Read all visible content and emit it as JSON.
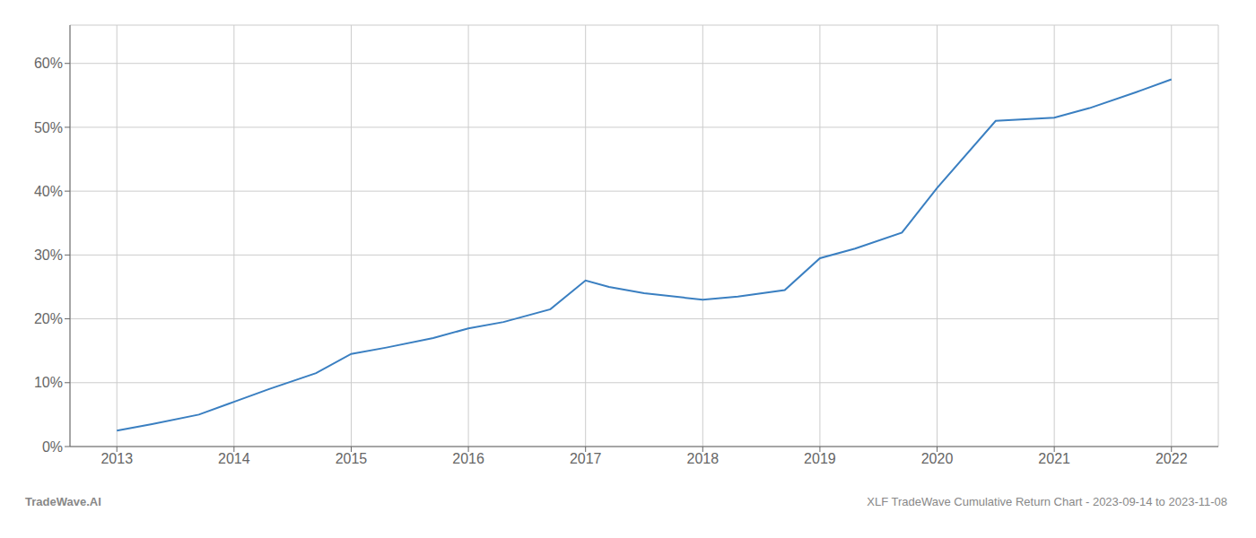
{
  "chart_data": {
    "type": "line",
    "x": [
      2013.0,
      2013.3,
      2013.7,
      2014.0,
      2014.3,
      2014.7,
      2015.0,
      2015.3,
      2015.7,
      2016.0,
      2016.3,
      2016.7,
      2017.0,
      2017.2,
      2017.5,
      2018.0,
      2018.3,
      2018.7,
      2019.0,
      2019.3,
      2019.7,
      2020.0,
      2020.5,
      2021.0,
      2021.3,
      2021.7,
      2022.0
    ],
    "values": [
      2.5,
      3.5,
      5.0,
      7.0,
      9.0,
      11.5,
      14.5,
      15.5,
      17.0,
      18.5,
      19.5,
      21.5,
      26.0,
      25.0,
      24.0,
      23.0,
      23.5,
      24.5,
      29.5,
      31.0,
      33.5,
      40.5,
      51.0,
      51.5,
      53.0,
      55.5,
      57.5
    ],
    "color": "#3a7fc1",
    "xlim": [
      2012.6,
      2022.4
    ],
    "ylim": [
      0,
      66
    ],
    "xticks": [
      2013,
      2014,
      2015,
      2016,
      2017,
      2018,
      2019,
      2020,
      2021,
      2022
    ],
    "yticks": [
      {
        "value": 0,
        "label": "0%"
      },
      {
        "value": 10,
        "label": "10%"
      },
      {
        "value": 20,
        "label": "20%"
      },
      {
        "value": 30,
        "label": "30%"
      },
      {
        "value": 40,
        "label": "40%"
      },
      {
        "value": 50,
        "label": "50%"
      },
      {
        "value": 60,
        "label": "60%"
      }
    ],
    "grid": true,
    "annotations": [
      "TradeWave.AI",
      "XLF TradeWave Cumulative Return Chart - 2023-09-14 to 2023-11-08"
    ]
  }
}
